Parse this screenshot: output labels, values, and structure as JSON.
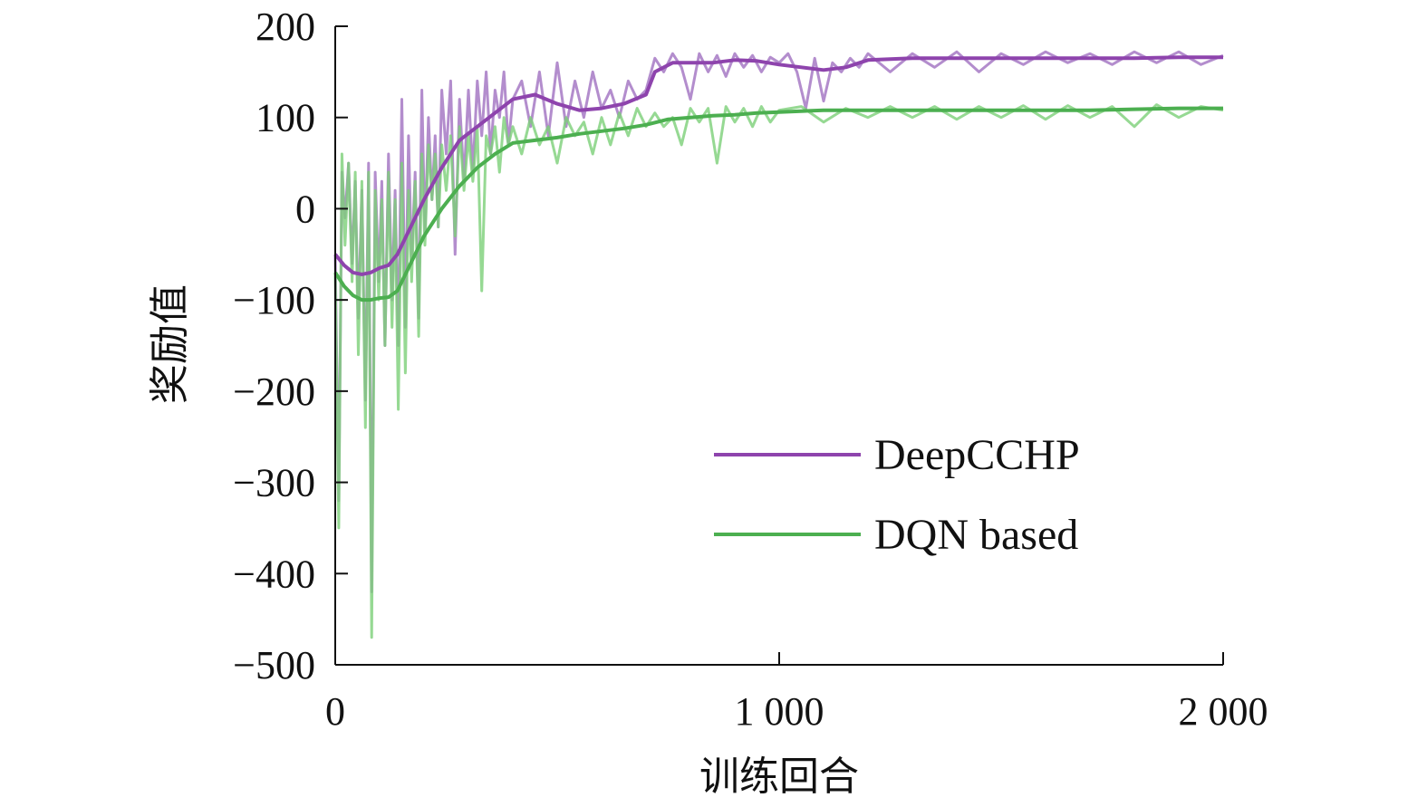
{
  "chart_data": {
    "type": "line",
    "title": "",
    "xlabel": "训练回合",
    "ylabel": "奖励值",
    "xlim": [
      0,
      2000
    ],
    "ylim": [
      -500,
      200
    ],
    "x_ticks": [
      {
        "value": 0,
        "label": "0"
      },
      {
        "value": 1000,
        "label": "1 000"
      },
      {
        "value": 2000,
        "label": "2 000"
      }
    ],
    "y_ticks": [
      {
        "value": 200,
        "label": "200"
      },
      {
        "value": 100,
        "label": "100"
      },
      {
        "value": 0,
        "label": "0"
      },
      {
        "value": -100,
        "label": "−100"
      },
      {
        "value": -200,
        "label": "−200"
      },
      {
        "value": -300,
        "label": "−300"
      },
      {
        "value": -400,
        "label": "−400"
      },
      {
        "value": -500,
        "label": "−500"
      }
    ],
    "legend": {
      "position": "center-right"
    },
    "series": [
      {
        "name": "DeepCCHP",
        "color": "#8e44ad",
        "raw_color": "#a070c0",
        "smoothed": {
          "x": [
            0,
            20,
            40,
            60,
            80,
            100,
            120,
            140,
            160,
            180,
            200,
            240,
            280,
            320,
            360,
            400,
            450,
            500,
            550,
            600,
            650,
            700,
            720,
            760,
            800,
            850,
            900,
            950,
            1000,
            1050,
            1100,
            1150,
            1200,
            1300,
            1400,
            1500,
            1600,
            1700,
            1800,
            1900,
            2000
          ],
          "y": [
            -50,
            -62,
            -70,
            -72,
            -70,
            -65,
            -62,
            -50,
            -30,
            -10,
            10,
            45,
            75,
            90,
            105,
            120,
            125,
            115,
            108,
            110,
            115,
            125,
            150,
            160,
            160,
            160,
            163,
            162,
            158,
            155,
            152,
            155,
            163,
            165,
            165,
            165,
            165,
            165,
            165,
            166,
            166
          ]
        },
        "raw": {
          "x": [
            0,
            8,
            15,
            22,
            30,
            38,
            45,
            52,
            60,
            68,
            75,
            82,
            90,
            98,
            105,
            112,
            120,
            128,
            135,
            142,
            150,
            158,
            165,
            172,
            180,
            188,
            195,
            202,
            210,
            218,
            225,
            232,
            240,
            250,
            260,
            270,
            280,
            290,
            300,
            310,
            320,
            330,
            340,
            350,
            360,
            370,
            380,
            390,
            400,
            420,
            440,
            460,
            480,
            500,
            520,
            540,
            560,
            580,
            600,
            620,
            640,
            660,
            680,
            700,
            720,
            740,
            760,
            780,
            800,
            820,
            840,
            860,
            880,
            900,
            920,
            940,
            960,
            980,
            1000,
            1020,
            1040,
            1060,
            1080,
            1100,
            1120,
            1140,
            1160,
            1180,
            1200,
            1250,
            1300,
            1350,
            1400,
            1450,
            1500,
            1550,
            1600,
            1650,
            1700,
            1750,
            1800,
            1850,
            1900,
            1950,
            2000
          ],
          "y": [
            -50,
            -320,
            40,
            -10,
            50,
            -60,
            30,
            -120,
            20,
            -210,
            50,
            -420,
            40,
            -80,
            30,
            -150,
            60,
            -100,
            20,
            -150,
            120,
            -130,
            80,
            -60,
            40,
            -120,
            130,
            -30,
            100,
            10,
            80,
            -20,
            130,
            60,
            140,
            -50,
            120,
            30,
            130,
            40,
            140,
            80,
            150,
            60,
            130,
            100,
            150,
            70,
            120,
            140,
            90,
            150,
            80,
            160,
            90,
            140,
            100,
            150,
            110,
            130,
            100,
            140,
            120,
            130,
            165,
            150,
            170,
            155,
            120,
            170,
            150,
            168,
            145,
            170,
            155,
            168,
            150,
            166,
            160,
            170,
            150,
            110,
            165,
            118,
            160,
            150,
            165,
            155,
            170,
            150,
            170,
            155,
            172,
            150,
            170,
            158,
            172,
            160,
            170,
            158,
            172,
            160,
            172,
            158,
            168
          ]
        }
      },
      {
        "name": "DQN based",
        "color": "#4caf50",
        "raw_color": "#7ccf78",
        "smoothed": {
          "x": [
            0,
            20,
            40,
            60,
            80,
            100,
            120,
            140,
            160,
            180,
            200,
            240,
            280,
            320,
            360,
            400,
            450,
            500,
            550,
            600,
            650,
            700,
            750,
            800,
            850,
            900,
            950,
            1000,
            1100,
            1200,
            1300,
            1400,
            1500,
            1600,
            1700,
            1800,
            1900,
            2000
          ],
          "y": [
            -70,
            -85,
            -95,
            -100,
            -100,
            -98,
            -97,
            -90,
            -70,
            -50,
            -30,
            0,
            25,
            45,
            60,
            72,
            75,
            78,
            82,
            85,
            88,
            92,
            98,
            100,
            102,
            103,
            105,
            106,
            108,
            108,
            108,
            108,
            108,
            108,
            108,
            109,
            110,
            110
          ]
        },
        "raw": {
          "x": [
            0,
            8,
            15,
            22,
            30,
            38,
            45,
            52,
            60,
            68,
            75,
            82,
            90,
            98,
            105,
            112,
            120,
            128,
            135,
            142,
            150,
            158,
            165,
            172,
            180,
            188,
            195,
            202,
            210,
            218,
            225,
            232,
            240,
            250,
            260,
            270,
            280,
            290,
            300,
            310,
            320,
            330,
            340,
            350,
            360,
            370,
            380,
            390,
            400,
            420,
            440,
            460,
            480,
            500,
            520,
            540,
            560,
            580,
            600,
            620,
            640,
            660,
            680,
            700,
            720,
            740,
            760,
            780,
            800,
            820,
            840,
            860,
            880,
            900,
            920,
            940,
            960,
            980,
            1000,
            1050,
            1100,
            1150,
            1200,
            1250,
            1300,
            1350,
            1400,
            1450,
            1500,
            1550,
            1600,
            1650,
            1700,
            1750,
            1800,
            1850,
            1900,
            1950,
            2000
          ],
          "y": [
            -70,
            -350,
            60,
            -40,
            50,
            -80,
            40,
            -160,
            30,
            -240,
            40,
            -470,
            20,
            -100,
            10,
            -150,
            40,
            -130,
            10,
            -220,
            50,
            -180,
            20,
            -80,
            30,
            -140,
            60,
            -40,
            70,
            10,
            60,
            -20,
            70,
            20,
            80,
            -30,
            90,
            20,
            80,
            30,
            90,
            -90,
            80,
            60,
            90,
            40,
            100,
            70,
            90,
            60,
            100,
            70,
            90,
            50,
            100,
            80,
            95,
            60,
            100,
            70,
            105,
            80,
            110,
            90,
            105,
            90,
            100,
            70,
            110,
            95,
            110,
            50,
            112,
            95,
            110,
            90,
            112,
            95,
            108,
            112,
            95,
            110,
            100,
            112,
            100,
            112,
            98,
            112,
            100,
            113,
            98,
            113,
            100,
            112,
            90,
            114,
            100,
            112,
            108
          ]
        }
      }
    ]
  }
}
